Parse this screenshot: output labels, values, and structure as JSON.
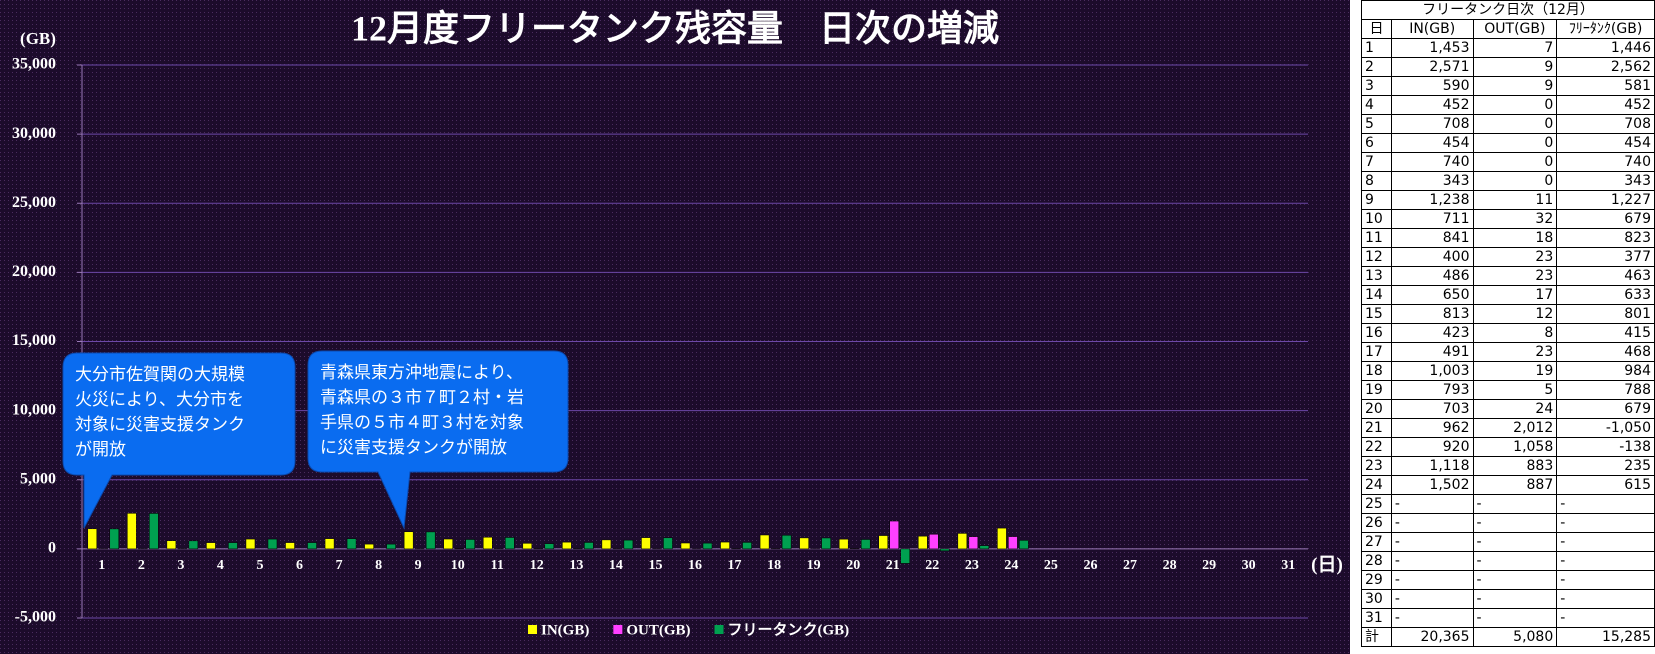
{
  "chart_data": {
    "type": "bar",
    "title": "12月度フリータンク残容量　日次の増減",
    "y_label": "(GB)",
    "x_label": "(日)",
    "categories": [
      "1",
      "2",
      "3",
      "4",
      "5",
      "6",
      "7",
      "8",
      "9",
      "10",
      "11",
      "12",
      "13",
      "14",
      "15",
      "16",
      "17",
      "18",
      "19",
      "20",
      "21",
      "22",
      "23",
      "24",
      "25",
      "26",
      "27",
      "28",
      "29",
      "30",
      "31"
    ],
    "series": [
      {
        "name": "IN(GB)",
        "color": "#ffff00",
        "values": [
          1453,
          2571,
          590,
          452,
          708,
          454,
          740,
          343,
          1238,
          711,
          841,
          400,
          486,
          650,
          813,
          423,
          491,
          1003,
          793,
          703,
          962,
          920,
          1118,
          1502,
          null,
          null,
          null,
          null,
          null,
          null,
          null
        ]
      },
      {
        "name": "OUT(GB)",
        "color": "#ff40ff",
        "values": [
          7,
          9,
          9,
          0,
          0,
          0,
          0,
          0,
          11,
          32,
          18,
          23,
          23,
          17,
          12,
          8,
          23,
          19,
          5,
          24,
          2012,
          1058,
          883,
          887,
          null,
          null,
          null,
          null,
          null,
          null,
          null
        ]
      },
      {
        "name": "フリータンク(GB)",
        "color": "#00a050",
        "values": [
          1446,
          2562,
          581,
          452,
          708,
          454,
          740,
          343,
          1227,
          679,
          823,
          377,
          463,
          633,
          801,
          415,
          468,
          984,
          788,
          679,
          -1050,
          -138,
          235,
          615,
          null,
          null,
          null,
          null,
          null,
          null,
          null
        ]
      }
    ],
    "ylim": [
      -5000,
      35000
    ],
    "yticks": [
      {
        "value": -5000,
        "label": "-5,000"
      },
      0,
      {
        "value": 5000,
        "label": "5,000"
      },
      {
        "value": 10000,
        "label": "10,000"
      },
      {
        "value": 15000,
        "label": "15,000"
      },
      {
        "value": 20000,
        "label": "20,000"
      },
      {
        "value": 25000,
        "label": "25,000"
      },
      {
        "value": 30000,
        "label": "30,000"
      },
      {
        "value": 35000,
        "label": "35,000"
      }
    ],
    "grid": true,
    "legend": "bottom",
    "annotations": [
      {
        "category": 0,
        "lines": [
          "大分市佐賀関の大規模",
          "火災により、大分市を",
          "対象に災害支援タンク",
          "が開放"
        ]
      },
      {
        "category": 8,
        "lines": [
          "青森県東方沖地震により、",
          "青森県の３市７町２村・岩",
          "手県の５市４町３村を対象",
          "に災害支援タンクが開放"
        ]
      }
    ]
  },
  "table": {
    "title": "フリータンク日次（12月）",
    "columns": [
      "日",
      "IN(GB)",
      "OUT(GB)",
      "ﾌﾘｰﾀﾝｸ(GB)"
    ],
    "rows": [
      [
        "1",
        "1,453",
        "7",
        "1,446"
      ],
      [
        "2",
        "2,571",
        "9",
        "2,562"
      ],
      [
        "3",
        "590",
        "9",
        "581"
      ],
      [
        "4",
        "452",
        "0",
        "452"
      ],
      [
        "5",
        "708",
        "0",
        "708"
      ],
      [
        "6",
        "454",
        "0",
        "454"
      ],
      [
        "7",
        "740",
        "0",
        "740"
      ],
      [
        "8",
        "343",
        "0",
        "343"
      ],
      [
        "9",
        "1,238",
        "11",
        "1,227"
      ],
      [
        "10",
        "711",
        "32",
        "679"
      ],
      [
        "11",
        "841",
        "18",
        "823"
      ],
      [
        "12",
        "400",
        "23",
        "377"
      ],
      [
        "13",
        "486",
        "23",
        "463"
      ],
      [
        "14",
        "650",
        "17",
        "633"
      ],
      [
        "15",
        "813",
        "12",
        "801"
      ],
      [
        "16",
        "423",
        "8",
        "415"
      ],
      [
        "17",
        "491",
        "23",
        "468"
      ],
      [
        "18",
        "1,003",
        "19",
        "984"
      ],
      [
        "19",
        "793",
        "5",
        "788"
      ],
      [
        "20",
        "703",
        "24",
        "679"
      ],
      [
        "21",
        "962",
        "2,012",
        "-1,050"
      ],
      [
        "22",
        "920",
        "1,058",
        "-138"
      ],
      [
        "23",
        "1,118",
        "883",
        "235"
      ],
      [
        "24",
        "1,502",
        "887",
        "615"
      ],
      [
        "25",
        "-",
        "-",
        "-"
      ],
      [
        "26",
        "-",
        "-",
        "-"
      ],
      [
        "27",
        "-",
        "-",
        "-"
      ],
      [
        "28",
        "-",
        "-",
        "-"
      ],
      [
        "29",
        "-",
        "-",
        "-"
      ],
      [
        "30",
        "-",
        "-",
        "-"
      ],
      [
        "31",
        "-",
        "-",
        "-"
      ]
    ],
    "total": [
      "計",
      "20,365",
      "5,080",
      "15,285"
    ]
  }
}
